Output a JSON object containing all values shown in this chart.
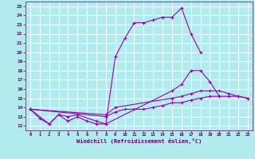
{
  "background_color": "#b2ebee",
  "grid_color": "#ffffff",
  "line_color": "#9900aa",
  "tick_color": "#660066",
  "xlabel": "Windchill (Refroidissement éolien,°C)",
  "xlim": [
    -0.5,
    23.5
  ],
  "ylim": [
    11.5,
    25.5
  ],
  "xticks": [
    0,
    1,
    2,
    3,
    4,
    5,
    6,
    7,
    8,
    9,
    10,
    11,
    12,
    13,
    14,
    15,
    16,
    17,
    18,
    19,
    20,
    21,
    22,
    23
  ],
  "yticks": [
    12,
    13,
    14,
    15,
    16,
    17,
    18,
    19,
    20,
    21,
    22,
    23,
    24,
    25
  ],
  "series": [
    {
      "x": [
        0,
        1,
        2,
        3,
        4,
        5,
        6,
        7,
        8,
        9,
        10,
        11,
        12,
        13,
        14,
        15,
        16,
        17,
        18
      ],
      "y": [
        13.8,
        12.8,
        12.2,
        13.2,
        12.5,
        13.0,
        12.5,
        12.2,
        12.2,
        19.5,
        21.5,
        23.2,
        23.2,
        23.5,
        23.8,
        23.8,
        24.8,
        22.0,
        20.0
      ]
    },
    {
      "x": [
        0,
        2,
        3,
        4,
        5,
        7,
        8,
        15,
        16,
        17,
        18,
        19,
        20
      ],
      "y": [
        13.8,
        12.2,
        13.2,
        13.0,
        13.2,
        12.5,
        12.2,
        15.8,
        16.5,
        18.0,
        18.0,
        16.8,
        15.2
      ]
    },
    {
      "x": [
        0,
        8,
        9,
        15,
        16,
        17,
        18,
        19,
        20,
        21,
        22,
        23
      ],
      "y": [
        13.8,
        13.2,
        14.0,
        15.0,
        15.2,
        15.5,
        15.8,
        15.8,
        15.8,
        15.5,
        15.2,
        15.0
      ]
    },
    {
      "x": [
        0,
        8,
        9,
        10,
        11,
        12,
        13,
        14,
        15,
        16,
        17,
        18,
        19,
        20,
        21,
        22,
        23
      ],
      "y": [
        13.8,
        13.0,
        13.5,
        13.8,
        13.8,
        13.8,
        14.0,
        14.2,
        14.5,
        14.5,
        14.8,
        15.0,
        15.2,
        15.2,
        15.2,
        15.2,
        15.0
      ]
    }
  ]
}
